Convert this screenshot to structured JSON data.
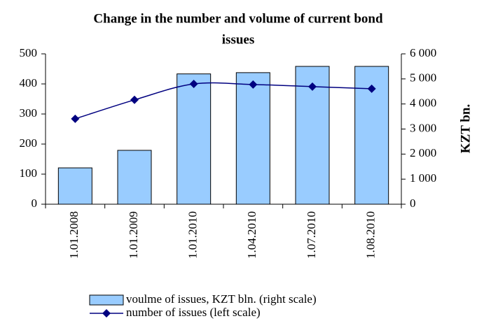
{
  "chart_data": {
    "type": "bar-line",
    "title": [
      "Change in the number and volume of current bond",
      "issues"
    ],
    "categories": [
      "1.01.2008",
      "1.01.2009",
      "1.01.2010",
      "1.04.2010",
      "1.07.2010",
      "1.08.2010"
    ],
    "series": [
      {
        "name": "voulme of issues, KZT bln. (right scale)",
        "type": "bar",
        "axis": "y2",
        "color": "#99ccff",
        "values": [
          1450,
          2150,
          5200,
          5250,
          5500,
          5500
        ]
      },
      {
        "name": "number of issues (left scale)",
        "type": "line",
        "axis": "y",
        "color": "#000080",
        "values": [
          284,
          347,
          400,
          398,
          391,
          384
        ]
      }
    ],
    "ylim": [
      0,
      500
    ],
    "yticks": [
      0,
      100,
      200,
      300,
      400,
      500
    ],
    "y2lim": [
      0,
      6000
    ],
    "y2ticks": [
      0,
      {
        "value": 1000,
        "label": "1 000"
      },
      {
        "value": 2000,
        "label": "2 000"
      },
      {
        "value": 3000,
        "label": "3 000"
      },
      {
        "value": 4000,
        "label": "4 000"
      },
      {
        "value": 5000,
        "label": "5 000"
      },
      {
        "value": 6000,
        "label": "6 000"
      }
    ],
    "y2label": "KZT bn."
  }
}
